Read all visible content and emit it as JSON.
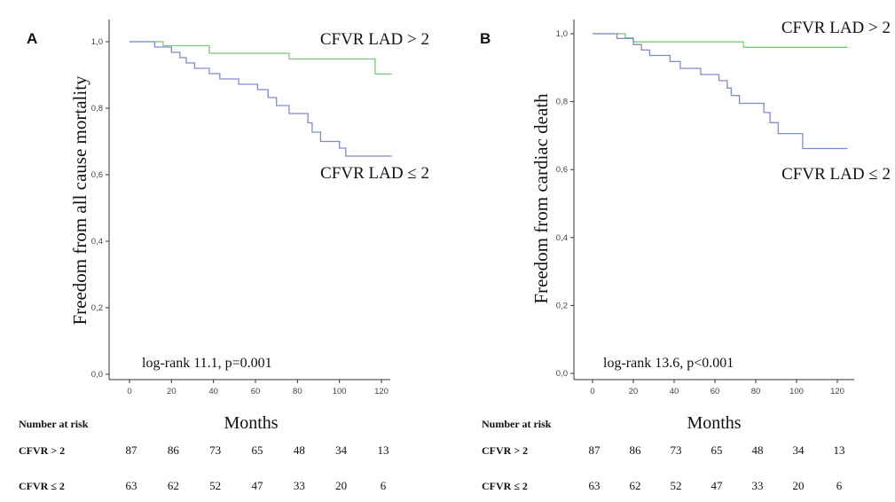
{
  "chart_data": [
    {
      "type": "line",
      "panel": "A",
      "ylabel": "Freedom from all cause mortality",
      "xlabel": "Months",
      "xlim": [
        0,
        125
      ],
      "ylim": [
        0,
        1.05
      ],
      "x_ticks": [
        "0",
        "20",
        "40",
        "60",
        "80",
        "100",
        "120"
      ],
      "x_tick_values": [
        0,
        20,
        40,
        60,
        80,
        100,
        120
      ],
      "y_ticks": [
        "0,0",
        "0,2",
        "0,4",
        "0,6",
        "0,8",
        "1,0"
      ],
      "y_tick_values": [
        0,
        0.2,
        0.4,
        0.6,
        0.8,
        1.0
      ],
      "grid": false,
      "annotation": "log-rank 11.1, p=0.001",
      "series": [
        {
          "name": "CFVR LAD > 2",
          "color": "#7dc87d",
          "points": [
            [
              0,
              1.0
            ],
            [
              16,
              1.0
            ],
            [
              16,
              0.988
            ],
            [
              38,
              0.988
            ],
            [
              38,
              0.965
            ],
            [
              76,
              0.965
            ],
            [
              76,
              0.948
            ],
            [
              117,
              0.948
            ],
            [
              117,
              0.903
            ],
            [
              125,
              0.903
            ]
          ]
        },
        {
          "name": "CFVR LAD ≤ 2",
          "color": "#7d8ccf",
          "points": [
            [
              0,
              1.0
            ],
            [
              12,
              1.0
            ],
            [
              12,
              0.984
            ],
            [
              20,
              0.984
            ],
            [
              20,
              0.968
            ],
            [
              24,
              0.968
            ],
            [
              24,
              0.952
            ],
            [
              27,
              0.952
            ],
            [
              27,
              0.936
            ],
            [
              31,
              0.936
            ],
            [
              31,
              0.92
            ],
            [
              38,
              0.92
            ],
            [
              38,
              0.904
            ],
            [
              43,
              0.904
            ],
            [
              43,
              0.888
            ],
            [
              52,
              0.888
            ],
            [
              52,
              0.872
            ],
            [
              61,
              0.872
            ],
            [
              61,
              0.856
            ],
            [
              66,
              0.856
            ],
            [
              66,
              0.832
            ],
            [
              70,
              0.832
            ],
            [
              70,
              0.808
            ],
            [
              76,
              0.808
            ],
            [
              76,
              0.784
            ],
            [
              85,
              0.784
            ],
            [
              85,
              0.756
            ],
            [
              87,
              0.756
            ],
            [
              87,
              0.728
            ],
            [
              91,
              0.728
            ],
            [
              91,
              0.7
            ],
            [
              100,
              0.7
            ],
            [
              100,
              0.68
            ],
            [
              103,
              0.68
            ],
            [
              103,
              0.656
            ],
            [
              125,
              0.656
            ]
          ]
        }
      ]
    },
    {
      "type": "line",
      "panel": "B",
      "ylabel": "Freedom from cardiac death",
      "xlabel": "Months",
      "xlim": [
        0,
        125
      ],
      "ylim": [
        0,
        1.05
      ],
      "x_ticks": [
        "0",
        "20",
        "40",
        "60",
        "80",
        "100",
        "120"
      ],
      "x_tick_values": [
        0,
        20,
        40,
        60,
        80,
        100,
        120
      ],
      "y_ticks": [
        "0,0",
        "0,2",
        "0,4",
        "0,6",
        "0,8",
        "1,0"
      ],
      "y_tick_values": [
        0,
        0.2,
        0.4,
        0.6,
        0.8,
        1.0
      ],
      "grid": false,
      "annotation": "log-rank 13.6, p<0.001",
      "series": [
        {
          "name": "CFVR LAD > 2",
          "color": "#7dc87d",
          "points": [
            [
              0,
              1.0
            ],
            [
              16,
              1.0
            ],
            [
              16,
              0.988
            ],
            [
              20,
              0.988
            ],
            [
              20,
              0.976
            ],
            [
              74,
              0.976
            ],
            [
              74,
              0.96
            ],
            [
              125,
              0.96
            ]
          ]
        },
        {
          "name": "CFVR LAD ≤ 2",
          "color": "#7d8ccf",
          "points": [
            [
              0,
              1.0
            ],
            [
              12,
              1.0
            ],
            [
              12,
              0.986
            ],
            [
              20,
              0.986
            ],
            [
              20,
              0.968
            ],
            [
              24,
              0.968
            ],
            [
              24,
              0.952
            ],
            [
              28,
              0.952
            ],
            [
              28,
              0.936
            ],
            [
              38,
              0.936
            ],
            [
              38,
              0.918
            ],
            [
              43,
              0.918
            ],
            [
              43,
              0.898
            ],
            [
              53,
              0.898
            ],
            [
              53,
              0.88
            ],
            [
              62,
              0.88
            ],
            [
              62,
              0.862
            ],
            [
              66,
              0.862
            ],
            [
              66,
              0.84
            ],
            [
              68,
              0.84
            ],
            [
              68,
              0.818
            ],
            [
              72,
              0.818
            ],
            [
              72,
              0.795
            ],
            [
              84,
              0.795
            ],
            [
              84,
              0.768
            ],
            [
              87,
              0.768
            ],
            [
              87,
              0.738
            ],
            [
              91,
              0.738
            ],
            [
              91,
              0.706
            ],
            [
              103,
              0.706
            ],
            [
              103,
              0.662
            ],
            [
              125,
              0.662
            ]
          ]
        }
      ]
    }
  ],
  "risk_tables": [
    {
      "title": "Number at risk",
      "rows": [
        {
          "label": "CFVR > 2",
          "values": [
            "87",
            "86",
            "73",
            "65",
            "48",
            "34",
            "13"
          ]
        },
        {
          "label": "CFVR ≤ 2",
          "values": [
            "63",
            "62",
            "52",
            "47",
            "33",
            "20",
            "6"
          ]
        }
      ]
    },
    {
      "title": "Number at risk",
      "rows": [
        {
          "label": "CFVR > 2",
          "values": [
            "87",
            "86",
            "73",
            "65",
            "48",
            "34",
            "13"
          ]
        },
        {
          "label": "CFVR ≤ 2",
          "values": [
            "63",
            "62",
            "52",
            "47",
            "33",
            "20",
            "6"
          ]
        }
      ]
    }
  ]
}
